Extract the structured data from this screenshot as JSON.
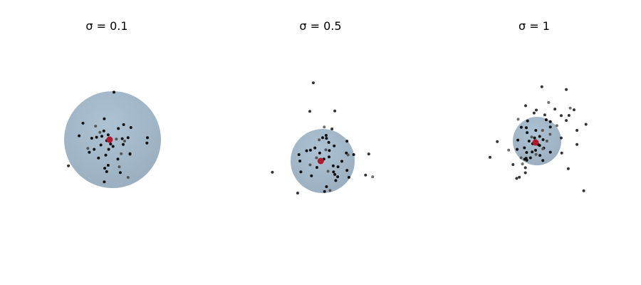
{
  "chart_data": [
    {
      "type": "scatter",
      "title": "σ = 0.1",
      "sigma": 0.1,
      "axes_visible": false,
      "sphere": {
        "center": [
          0.0,
          0.0
        ],
        "radius": 1.0,
        "color": "#a6bccd"
      },
      "center_point": {
        "x": -0.06,
        "y": 0.0,
        "color": "#b0182d"
      },
      "points": [
        [
          0.03,
          0.98
        ],
        [
          -0.17,
          0.43
        ],
        [
          -0.61,
          0.34
        ],
        [
          -0.35,
          0.28
        ],
        [
          0.23,
          0.31
        ],
        [
          0.38,
          0.25
        ],
        [
          0.12,
          0.23
        ],
        [
          -0.18,
          0.18
        ],
        [
          -0.26,
          0.15
        ],
        [
          -0.09,
          0.1
        ],
        [
          -0.69,
          0.08
        ],
        [
          -0.22,
          0.07
        ],
        [
          -0.43,
          0.03
        ],
        [
          0.08,
          0.01
        ],
        [
          0.2,
          0.02
        ],
        [
          0.32,
          0.04
        ],
        [
          0.72,
          0.04
        ],
        [
          -0.12,
          -0.02
        ],
        [
          0.25,
          -0.03
        ],
        [
          0.71,
          -0.07
        ],
        [
          -0.24,
          -0.11
        ],
        [
          -0.04,
          -0.09
        ],
        [
          0.01,
          -0.14
        ],
        [
          -0.51,
          -0.18
        ],
        [
          -0.38,
          -0.2
        ],
        [
          -0.08,
          -0.2
        ],
        [
          -0.48,
          -0.26
        ],
        [
          0.36,
          -0.29
        ],
        [
          0.18,
          -0.29
        ],
        [
          -0.14,
          -0.32
        ],
        [
          -0.29,
          -0.38
        ],
        [
          0.11,
          -0.4
        ],
        [
          -0.09,
          -0.53
        ],
        [
          0.14,
          -0.56
        ],
        [
          -0.16,
          -0.59
        ],
        [
          -0.12,
          -0.66
        ],
        [
          0.16,
          -0.68
        ],
        [
          -0.91,
          -0.54
        ],
        [
          0.32,
          -0.78
        ],
        [
          -0.17,
          -0.87
        ],
        [
          0.36,
          -0.3
        ],
        [
          0.22,
          -0.1
        ],
        [
          -0.33,
          0.05
        ]
      ]
    },
    {
      "type": "scatter",
      "title": "σ = 0.5",
      "sigma": 0.5,
      "axes_visible": false,
      "sphere": {
        "center": [
          0.0,
          0.0
        ],
        "radius": 1.0,
        "color": "#a6bccd"
      },
      "center_point": {
        "x": -0.06,
        "y": 0.0,
        "color": "#b0182d"
      },
      "points": [
        [
          -0.29,
          2.44
        ],
        [
          -0.4,
          1.55
        ],
        [
          0.38,
          1.56
        ],
        [
          0.05,
          1.06
        ],
        [
          0.29,
          1.0
        ],
        [
          0.11,
          0.8
        ],
        [
          0.0,
          0.73
        ],
        [
          0.12,
          0.71
        ],
        [
          -0.11,
          0.66
        ],
        [
          0.19,
          0.58
        ],
        [
          0.76,
          0.62
        ],
        [
          -0.24,
          0.41
        ],
        [
          0.36,
          0.47
        ],
        [
          0.1,
          0.35
        ],
        [
          0.21,
          0.33
        ],
        [
          -0.5,
          0.32
        ],
        [
          -0.38,
          0.34
        ],
        [
          0.74,
          0.25
        ],
        [
          0.79,
          0.19
        ],
        [
          1.44,
          0.22
        ],
        [
          0.97,
          0.2
        ],
        [
          -0.74,
          0.2
        ],
        [
          -0.09,
          0.25
        ],
        [
          -0.19,
          0.1
        ],
        [
          0.2,
          0.13
        ],
        [
          0.04,
          0.06
        ],
        [
          -0.71,
          0.0
        ],
        [
          0.6,
          -0.01
        ],
        [
          -0.39,
          -0.12
        ],
        [
          0.33,
          -0.15
        ],
        [
          -0.18,
          -0.2
        ],
        [
          0.48,
          -0.18
        ],
        [
          0.76,
          -0.29
        ],
        [
          0.17,
          -0.32
        ],
        [
          -0.68,
          -0.34
        ],
        [
          -0.35,
          -0.46
        ],
        [
          0.38,
          -0.42
        ],
        [
          1.34,
          -0.44
        ],
        [
          1.56,
          -0.49
        ],
        [
          0.47,
          -0.49
        ],
        [
          0.41,
          -0.61
        ],
        [
          0.12,
          -0.8
        ],
        [
          0.82,
          -0.51
        ],
        [
          0.23,
          -0.92
        ],
        [
          0.06,
          -0.95
        ],
        [
          -0.78,
          -1.0
        ],
        [
          -1.57,
          -0.35
        ],
        [
          0.34,
          -0.34
        ]
      ]
    },
    {
      "type": "scatter",
      "title": "σ = 1",
      "sigma": 1,
      "axes_visible": false,
      "sphere": {
        "center": [
          0.0,
          0.0
        ],
        "radius": 1.0,
        "color": "#a6bccd"
      },
      "center_point": {
        "x": -0.06,
        "y": -0.06,
        "color": "#b0182d"
      },
      "points": [
        [
          0.2,
          2.24
        ],
        [
          1.21,
          2.13
        ],
        [
          -0.47,
          1.46
        ],
        [
          0.48,
          1.59
        ],
        [
          0.74,
          1.32
        ],
        [
          1.53,
          1.29
        ],
        [
          -0.03,
          1.28
        ],
        [
          -0.12,
          1.16
        ],
        [
          -0.78,
          0.9
        ],
        [
          0.32,
          1.08
        ],
        [
          1.0,
          1.05
        ],
        [
          1.32,
          1.06
        ],
        [
          -0.39,
          0.83
        ],
        [
          0.82,
          0.64
        ],
        [
          1.21,
          0.85
        ],
        [
          2.02,
          0.69
        ],
        [
          -0.65,
          0.57
        ],
        [
          -0.44,
          0.55
        ],
        [
          0.23,
          0.44
        ],
        [
          0.55,
          0.58
        ],
        [
          1.65,
          0.44
        ],
        [
          -0.05,
          0.44
        ],
        [
          -0.41,
          0.35
        ],
        [
          0.54,
          0.28
        ],
        [
          -0.1,
          0.13
        ],
        [
          0.25,
          0.06
        ],
        [
          -0.79,
          0.04
        ],
        [
          -0.33,
          0.0
        ],
        [
          0.41,
          0.0
        ],
        [
          -0.18,
          -0.11
        ],
        [
          0.11,
          -0.18
        ],
        [
          -0.52,
          -0.28
        ],
        [
          0.28,
          -0.29
        ],
        [
          -1.17,
          -0.37
        ],
        [
          -0.82,
          -0.34
        ],
        [
          -0.2,
          -0.45
        ],
        [
          -0.43,
          -0.47
        ],
        [
          0.55,
          -0.46
        ],
        [
          -0.04,
          -0.55
        ],
        [
          1.02,
          -0.49
        ],
        [
          -1.94,
          -0.67
        ],
        [
          -0.45,
          -0.71
        ],
        [
          0.12,
          -0.59
        ],
        [
          -0.66,
          -0.69
        ],
        [
          -0.27,
          -0.69
        ],
        [
          -0.42,
          -0.79
        ],
        [
          0.24,
          -0.8
        ],
        [
          -0.51,
          -0.75
        ],
        [
          -0.6,
          -0.94
        ],
        [
          -0.99,
          -0.97
        ],
        [
          -0.48,
          -1.1
        ],
        [
          -0.48,
          -1.31
        ],
        [
          -0.84,
          -1.54
        ],
        [
          -0.22,
          0.17
        ],
        [
          0.11,
          0.19
        ],
        [
          0.06,
          -0.15
        ],
        [
          -0.73,
          -1.49
        ],
        [
          1.29,
          -1.14
        ],
        [
          0.24,
          -0.32
        ],
        [
          -0.06,
          -0.38
        ],
        [
          1.0,
          0.13
        ],
        [
          0.55,
          0.8
        ],
        [
          0.38,
          0.88
        ],
        [
          1.37,
          1.36
        ],
        [
          -1.64,
          -0.02
        ],
        [
          1.65,
          -0.14
        ],
        [
          1.93,
          -2.05
        ]
      ]
    }
  ],
  "palette": {
    "sphere_fill": "#a6bccd",
    "sphere_shadow": "#93a9ba",
    "point": "#111111",
    "point_faint": "#555555",
    "center": "#b0182d"
  }
}
